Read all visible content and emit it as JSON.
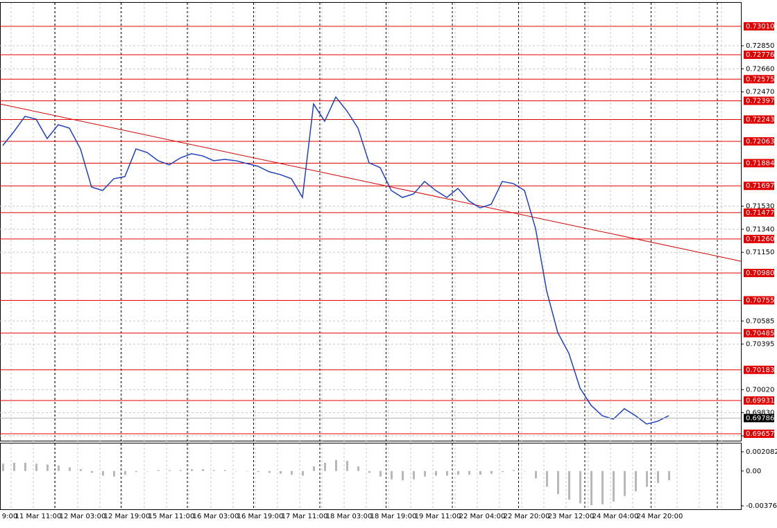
{
  "chart_data": [
    {
      "type": "line",
      "series": [
        {
          "color": "#2040c0",
          "values": [
            0.72029,
            0.72143,
            0.72269,
            0.72246,
            0.72086,
            0.722,
            0.72172,
            0.72001,
            0.71687,
            0.71659,
            0.71756,
            0.71773,
            0.72001,
            0.71972,
            0.71904,
            0.7187,
            0.71927,
            0.71961,
            0.71944,
            0.71904,
            0.71915,
            0.71904,
            0.71881,
            0.71858,
            0.71813,
            0.7179,
            0.71756,
            0.71602,
            0.72371,
            0.72229,
            0.72428,
            0.72314,
            0.72172,
            0.71887,
            0.71847,
            0.71659,
            0.71602,
            0.7163,
            0.71733,
            0.71659,
            0.71602,
            0.71676,
            0.71573,
            0.71516,
            0.71545,
            0.71733,
            0.71716,
            0.71659,
            0.71345,
            0.70832,
            0.7049,
            0.70319,
            0.70034,
            0.69891,
            0.69806,
            0.69777,
            0.69863,
            0.69806,
            0.69737,
            0.6976,
            0.69806
          ]
        }
      ],
      "trend_line": {
        "color": "#d00000",
        "values": [
          0.72371,
          0.71077
        ]
      },
      "levels": [
        {
          "value": 0.7301,
          "label": "0.73010"
        },
        {
          "value": 0.72776,
          "label": "0.72776"
        },
        {
          "value": 0.72575,
          "label": "0.72575"
        },
        {
          "value": 0.72397,
          "label": "0.72397"
        },
        {
          "value": 0.72243,
          "label": "0.72243"
        },
        {
          "value": 0.72063,
          "label": "0.72063"
        },
        {
          "value": 0.71884,
          "label": "0.71884"
        },
        {
          "value": 0.71697,
          "label": "0.71697"
        },
        {
          "value": 0.71477,
          "label": "0.71477"
        },
        {
          "value": 0.7126,
          "label": "0.71260"
        },
        {
          "value": 0.7098,
          "label": "0.70980"
        },
        {
          "value": 0.70755,
          "label": "0.70755"
        },
        {
          "value": 0.70485,
          "label": "0.70485"
        },
        {
          "value": 0.70183,
          "label": "0.70183"
        },
        {
          "value": 0.69931,
          "label": "0.69931"
        },
        {
          "value": 0.69657,
          "label": "0.69657"
        }
      ],
      "level_color": "#e00000",
      "current_price": {
        "value": 0.69786,
        "label": "0.69786"
      },
      "ylim": [
        0.696,
        0.73198
      ],
      "yticks": [
        {
          "value": 0.7285,
          "label": "0.72850"
        },
        {
          "value": 0.7266,
          "label": "0.72660"
        },
        {
          "value": 0.7247,
          "label": "0.72470"
        },
        {
          "value": 0.7153,
          "label": "0.71530"
        },
        {
          "value": 0.7134,
          "label": "0.71340"
        },
        {
          "value": 0.7115,
          "label": "0.71150"
        },
        {
          "value": 0.70585,
          "label": "0.70585"
        },
        {
          "value": 0.70395,
          "label": "0.70395"
        },
        {
          "value": 0.7002,
          "label": "0.70020"
        },
        {
          "value": 0.6983,
          "label": "0.69830"
        },
        {
          "value": 0.6964,
          "label": "0.69640"
        }
      ],
      "x_labels": [
        "9:00",
        "11 Mar 11:00",
        "12 Mar 03:00",
        "12 Mar 19:00",
        "15 Mar 11:00",
        "16 Mar 03:00",
        "16 Mar 19:00",
        "17 Mar 11:00",
        "18 Mar 03:00",
        "18 Mar 19:00",
        "19 Mar 11:00",
        "22 Mar 04:00",
        "22 Mar 20:00",
        "23 Mar 12:00",
        "24 Mar 04:00",
        "24 Mar 20:00"
      ],
      "grid": true
    },
    {
      "type": "bar",
      "color": "#b8b8b8",
      "values": [
        0.0008,
        0.0009,
        0.0009,
        0.0008,
        0.0007,
        0.0006,
        0.0004,
        0.0002,
        -0.0002,
        -0.0005,
        -0.0006,
        -0.0004,
        -0.0001,
        0.0,
        0.0001,
        0.0001,
        0.0001,
        0.0002,
        0.0002,
        0.0001,
        0.0001,
        0.0,
        0.0,
        -0.0001,
        -0.0002,
        -0.0003,
        -0.0004,
        -0.0005,
        0.0005,
        0.0009,
        0.0012,
        0.0011,
        0.0005,
        -0.0002,
        -0.0006,
        -0.0009,
        -0.001,
        -0.0009,
        -0.0006,
        -0.0005,
        -0.0005,
        -0.0004,
        -0.0004,
        -0.0004,
        -0.0003,
        -0.0001,
        0.0001,
        0.0,
        -0.0008,
        -0.0017,
        -0.0025,
        -0.0031,
        -0.0035,
        -0.0037,
        -0.0036,
        -0.0033,
        -0.0027,
        -0.0022,
        -0.0017,
        -0.0013,
        -0.001
      ],
      "ylim": [
        -0.003768,
        0.002082
      ],
      "yticks": [
        {
          "value": 0.002082,
          "label": "0.002082"
        },
        {
          "value": 0,
          "label": "0.00"
        },
        {
          "value": -0.003768,
          "label": "-0.003768"
        }
      ]
    }
  ]
}
